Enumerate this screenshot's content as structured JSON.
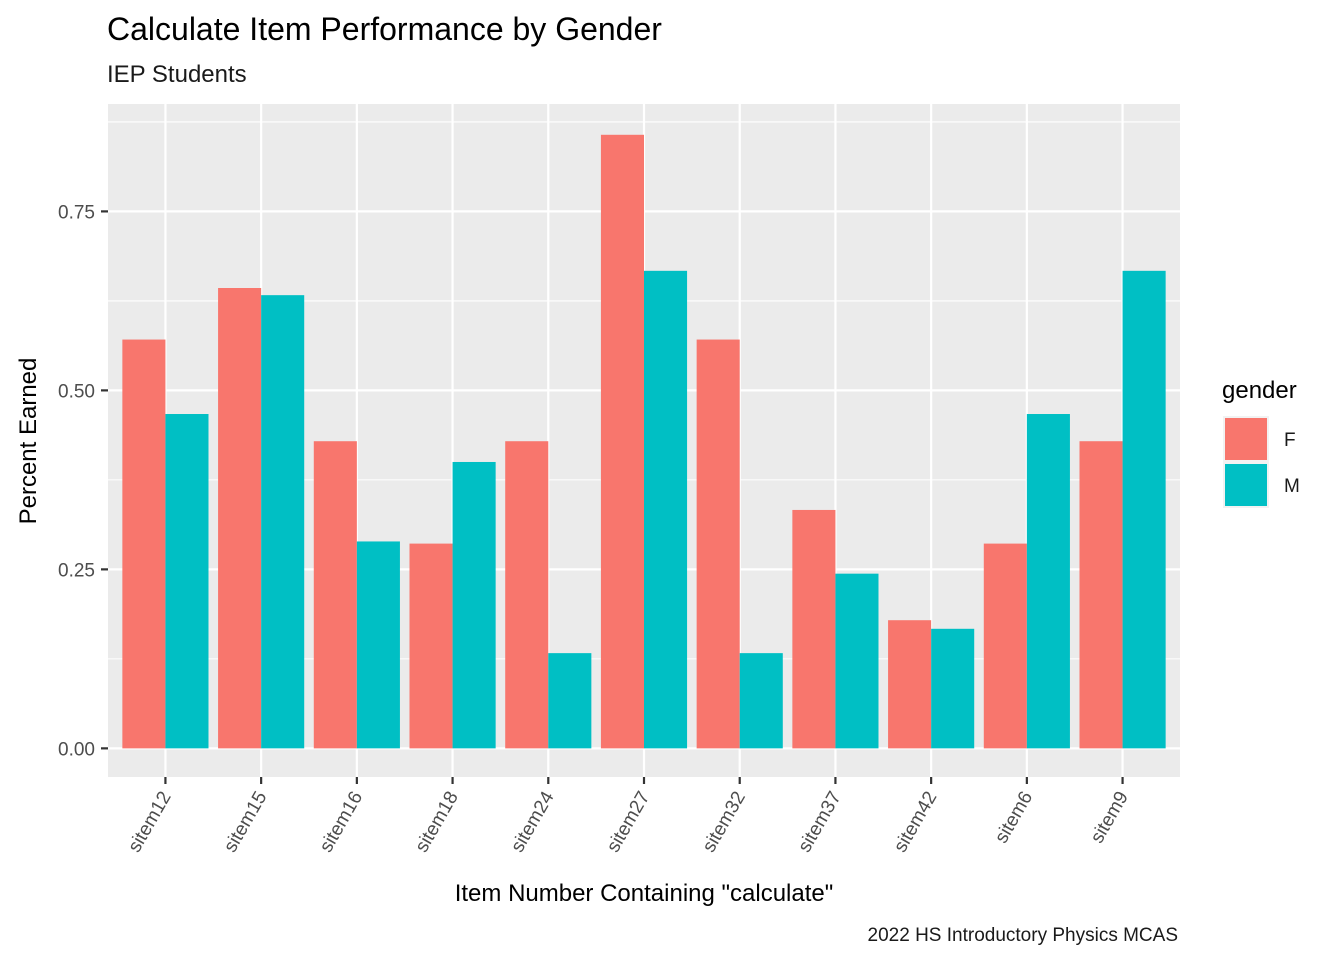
{
  "chart_data": {
    "type": "bar",
    "title": "Calculate Item Performance by Gender",
    "subtitle": "IEP Students",
    "caption": "2022 HS Introductory Physics MCAS",
    "xlabel": "Item Number Containing \"calculate\"",
    "ylabel": "Percent Earned",
    "ylim": [
      -0.04,
      0.9
    ],
    "yticks": [
      0,
      0.25,
      0.5,
      0.75
    ],
    "ytick_labels": [
      "0.00",
      "0.25",
      "0.50",
      "0.75"
    ],
    "grid": true,
    "legend_position": "right",
    "legend_title": "gender",
    "categories": [
      "sitem12",
      "sitem15",
      "sitem16",
      "sitem18",
      "sitem24",
      "sitem27",
      "sitem32",
      "sitem37",
      "sitem42",
      "sitem6",
      "sitem9"
    ],
    "series": [
      {
        "name": "F",
        "color": "#F8766D",
        "values": [
          0.571,
          0.643,
          0.429,
          0.286,
          0.429,
          0.857,
          0.571,
          0.333,
          0.179,
          0.286,
          0.429
        ]
      },
      {
        "name": "M",
        "color": "#00BFC4",
        "values": [
          0.467,
          0.633,
          0.289,
          0.4,
          0.133,
          0.667,
          0.133,
          0.244,
          0.167,
          0.467,
          0.667
        ]
      }
    ]
  }
}
